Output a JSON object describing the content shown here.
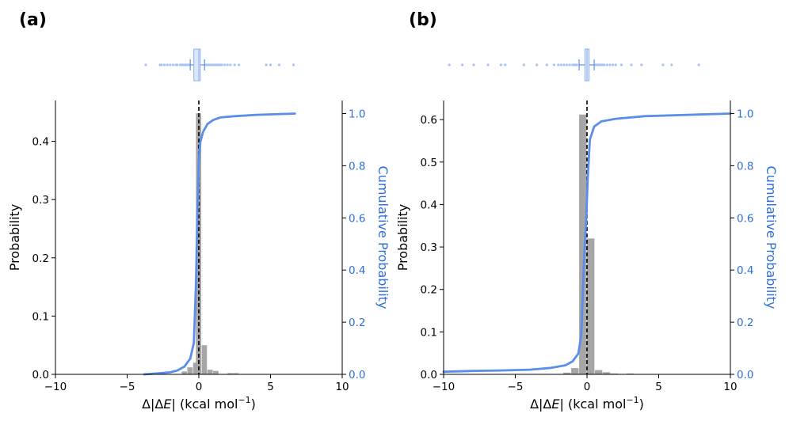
{
  "chart_data": [
    {
      "type": "bar",
      "panel_label": "(a)",
      "xlabel_prefix": "Δ|Δ",
      "xlabel_var": "E",
      "xlabel_suffix": "| (kcal mol",
      "xlabel_exp": "−1",
      "xlabel_close": ")",
      "ylabel": "Probability",
      "y2label": "Cumulative Probability",
      "xlim": [
        -10,
        10
      ],
      "ylim": [
        0,
        0.47
      ],
      "y2lim": [
        0,
        1.05
      ],
      "xticks": [
        -10,
        -5,
        0,
        5,
        10
      ],
      "xtick_labels": [
        "−10",
        "−5",
        "0",
        "5",
        "10"
      ],
      "yticks": [
        0.0,
        0.1,
        0.2,
        0.3,
        0.4
      ],
      "ytick_labels": [
        "0.0",
        "0.1",
        "0.2",
        "0.3",
        "0.4"
      ],
      "y2ticks": [
        0.0,
        0.2,
        0.4,
        0.6,
        0.8,
        1.0
      ],
      "y2tick_labels": [
        "0.0",
        "0.2",
        "0.4",
        "0.6",
        "0.8",
        "1.0"
      ],
      "zero_line_x": 0,
      "histogram": {
        "bin_width": 0.4,
        "bins": [
          {
            "left": -1.2,
            "value": 0.005
          },
          {
            "left": -0.8,
            "value": 0.012
          },
          {
            "left": -0.4,
            "value": 0.02
          },
          {
            "left": -0.2,
            "value": 0.448
          },
          {
            "left": 0.2,
            "value": 0.05
          },
          {
            "left": 0.6,
            "value": 0.008
          },
          {
            "left": 1.0,
            "value": 0.006
          },
          {
            "left": 2.0,
            "value": 0.002
          },
          {
            "left": 2.4,
            "value": 0.002
          }
        ]
      },
      "cdf": {
        "x": [
          -3.8,
          -3.0,
          -2.0,
          -1.5,
          -1.0,
          -0.6,
          -0.35,
          -0.2,
          -0.1,
          0.0,
          0.1,
          0.3,
          0.6,
          1.0,
          1.5,
          2.5,
          4.0,
          6.7
        ],
        "y": [
          0.0,
          0.003,
          0.008,
          0.015,
          0.03,
          0.06,
          0.12,
          0.35,
          0.62,
          0.82,
          0.89,
          0.93,
          0.96,
          0.975,
          0.985,
          0.99,
          0.995,
          1.0
        ]
      },
      "boxplot": {
        "q1": -0.35,
        "median": 0.0,
        "q3": 0.1,
        "whisker_low": -0.6,
        "whisker_high": 0.4,
        "outliers": [
          -3.7,
          -2.7,
          -2.6,
          -2.4,
          -2.2,
          -2.0,
          -1.8,
          -1.6,
          -1.5,
          -1.3,
          -1.2,
          -1.1,
          -1.0,
          -0.9,
          -0.8,
          -0.7,
          0.5,
          0.6,
          0.7,
          0.8,
          0.9,
          1.0,
          1.1,
          1.2,
          1.3,
          1.4,
          1.5,
          1.6,
          1.8,
          2.0,
          2.2,
          2.5,
          2.8,
          4.7,
          5.0,
          5.6,
          6.6
        ]
      }
    },
    {
      "type": "bar",
      "panel_label": "(b)",
      "xlabel_prefix": "Δ|Δ",
      "xlabel_var": "E",
      "xlabel_suffix": "| (kcal mol",
      "xlabel_exp": "−1",
      "xlabel_close": ")",
      "ylabel": "Probability",
      "y2label": "Cumulative Probability",
      "xlim": [
        -10,
        10
      ],
      "ylim": [
        0,
        0.645
      ],
      "y2lim": [
        0,
        1.05
      ],
      "xticks": [
        -10,
        -5,
        0,
        5,
        10
      ],
      "xtick_labels": [
        "−10",
        "−5",
        "0",
        "5",
        "10"
      ],
      "yticks": [
        0.0,
        0.1,
        0.2,
        0.3,
        0.4,
        0.5,
        0.6
      ],
      "ytick_labels": [
        "0.0",
        "0.1",
        "0.2",
        "0.3",
        "0.4",
        "0.5",
        "0.6"
      ],
      "y2ticks": [
        0.0,
        0.2,
        0.4,
        0.6,
        0.8,
        1.0
      ],
      "y2tick_labels": [
        "0.0",
        "0.2",
        "0.4",
        "0.6",
        "0.8",
        "1.0"
      ],
      "zero_line_x": 0,
      "histogram": {
        "bin_width": 0.55,
        "bins": [
          {
            "left": -1.65,
            "value": 0.004
          },
          {
            "left": -1.1,
            "value": 0.015
          },
          {
            "left": -0.55,
            "value": 0.612
          },
          {
            "left": 0.0,
            "value": 0.32
          },
          {
            "left": 0.55,
            "value": 0.01
          },
          {
            "left": 1.1,
            "value": 0.005
          },
          {
            "left": 1.65,
            "value": 0.002
          },
          {
            "left": 2.75,
            "value": 0.002
          }
        ]
      },
      "cdf": {
        "x": [
          -10.0,
          -8.0,
          -6.0,
          -4.0,
          -2.5,
          -1.5,
          -1.0,
          -0.6,
          -0.4,
          -0.3,
          -0.2,
          -0.05,
          0.05,
          0.2,
          0.5,
          1.0,
          2.0,
          4.0,
          7.0,
          10.0
        ],
        "y": [
          0.01,
          0.013,
          0.015,
          0.018,
          0.025,
          0.035,
          0.05,
          0.08,
          0.15,
          0.3,
          0.45,
          0.6,
          0.75,
          0.9,
          0.95,
          0.97,
          0.98,
          0.99,
          0.995,
          1.0
        ]
      },
      "boxplot": {
        "q1": -0.15,
        "median": 0.0,
        "q3": 0.15,
        "whisker_low": -0.55,
        "whisker_high": 0.5,
        "outliers": [
          -9.6,
          -8.7,
          -7.9,
          -6.9,
          -6.0,
          -5.7,
          -4.4,
          -3.5,
          -2.8,
          -2.3,
          -2.0,
          -1.8,
          -1.6,
          -1.4,
          -1.2,
          -1.0,
          -0.9,
          -0.8,
          -0.7,
          0.6,
          0.7,
          0.8,
          0.9,
          1.0,
          1.1,
          1.2,
          1.4,
          1.6,
          1.8,
          2.0,
          2.4,
          3.1,
          3.8,
          5.3,
          5.9,
          7.8
        ]
      }
    }
  ],
  "colors": {
    "hist_bar": "#a6a6a6",
    "cdf_line": "#5b8dea",
    "right_axis_text": "#2f6fd6",
    "box_fill": "#dbe6fb",
    "box_stroke": "#8fb2ee",
    "outlier": "#a9c3f2",
    "zero_line": "#000000"
  }
}
